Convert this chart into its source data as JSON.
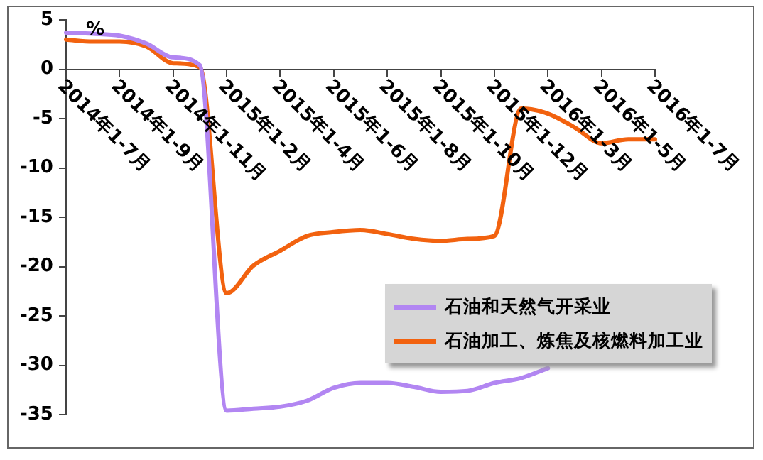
{
  "chart_data": {
    "type": "line",
    "ylabel": "%",
    "categories": [
      "2014年1-7月",
      null,
      "2014年1-9月",
      null,
      "2014年1-11月",
      null,
      "2015年1-2月",
      null,
      "2015年1-4月",
      null,
      "2015年1-6月",
      null,
      "2015年1-8月",
      null,
      "2015年1-10月",
      null,
      "2015年1-12月",
      null,
      "2016年1-3月",
      null,
      "2016年1-5月",
      null,
      "2016年1-7月"
    ],
    "series": [
      {
        "name": "石油和天然气开采业",
        "color": "#b286f2",
        "values": [
          3.7,
          3.6,
          3.4,
          2.6,
          1.2,
          0.4,
          -34.6,
          -34.4,
          -34.2,
          -33.6,
          -32.3,
          -31.8,
          -31.8,
          -32.2,
          -32.7,
          -32.6,
          -31.8,
          -31.3,
          -30.3,
          null,
          null,
          null,
          null
        ]
      },
      {
        "name": "石油加工、炼焦及核燃料加工业",
        "color": "#f2620f",
        "values": [
          3.0,
          2.8,
          2.8,
          2.3,
          0.6,
          0.2,
          -22.7,
          -19.9,
          -18.4,
          -16.9,
          -16.5,
          -16.3,
          -16.7,
          -17.2,
          -17.4,
          -17.2,
          -16.9,
          -4.0,
          -4.5,
          -5.9,
          -7.5,
          -7.1,
          -7.1
        ]
      }
    ],
    "ylim": [
      -35,
      5
    ],
    "yticks": [
      5,
      0,
      -5,
      -10,
      -15,
      -20,
      -25,
      -30,
      -35
    ],
    "legend": "bottom right",
    "marker": "none",
    "line_style": "solid",
    "grid": false
  }
}
